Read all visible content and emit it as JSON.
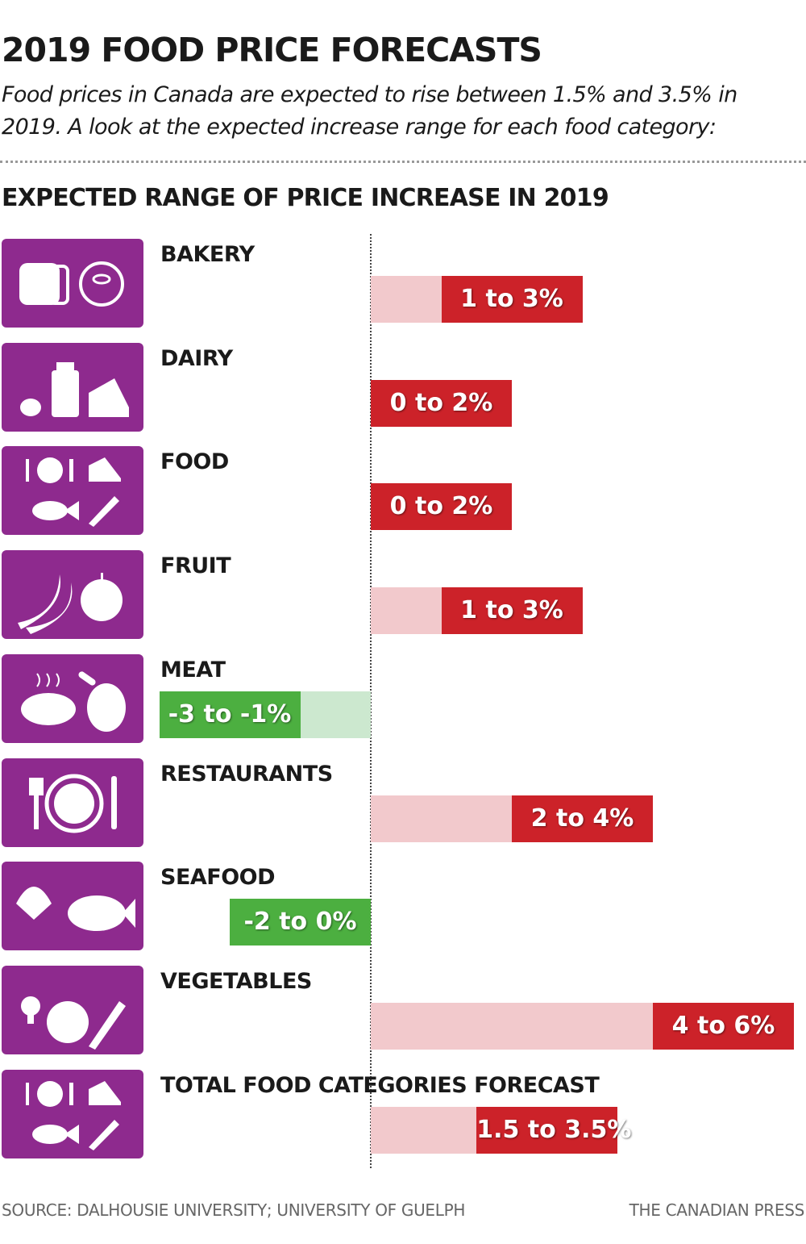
{
  "title": "2019 FOOD PRICE FORECASTS",
  "subtitle": "Food prices in Canada are expected to rise between 1.5% and 3.5% in 2019. A look at the expected increase range for each food category:",
  "section_title": "EXPECTED RANGE OF PRICE INCREASE IN 2019",
  "source": "SOURCE: DALHOUSIE UNIVERSITY; UNIVERSITY OF GUELPH",
  "credit": "THE CANADIAN PRESS",
  "colors": {
    "icon_bg": "#8e2a8e",
    "increase": "#cc2229",
    "increase_light": "#f2c9cc",
    "decrease": "#4caf40",
    "decrease_light": "#cce8cf"
  },
  "chart_data": {
    "type": "bar",
    "subtype": "floating-range",
    "title": "EXPECTED RANGE OF PRICE INCREASE IN 2019",
    "unit": "%",
    "xlim": [
      -3,
      6
    ],
    "categories": [
      "BAKERY",
      "DAIRY",
      "FOOD",
      "FRUIT",
      "MEAT",
      "RESTAURANTS",
      "SEAFOOD",
      "VEGETABLES",
      "TOTAL FOOD CATEGORIES FORECAST"
    ],
    "icons": [
      "bread-donut-icon",
      "milk-cheese-icon",
      "food-mix-icon",
      "banana-apple-icon",
      "steak-drumstick-icon",
      "plate-cutlery-icon",
      "shell-fish-icon",
      "vegetables-icon",
      "food-mix-icon"
    ],
    "low": [
      1,
      0,
      0,
      1,
      -3,
      2,
      -2,
      4,
      1.5
    ],
    "high": [
      3,
      2,
      2,
      3,
      -1,
      4,
      0,
      6,
      3.5
    ],
    "labels": [
      "1 to 3%",
      "0 to 2%",
      "0 to 2%",
      "1 to 3%",
      "-3 to -1%",
      "2 to 4%",
      "-2 to 0%",
      "4 to 6%",
      "1.5 to 3.5%"
    ]
  }
}
